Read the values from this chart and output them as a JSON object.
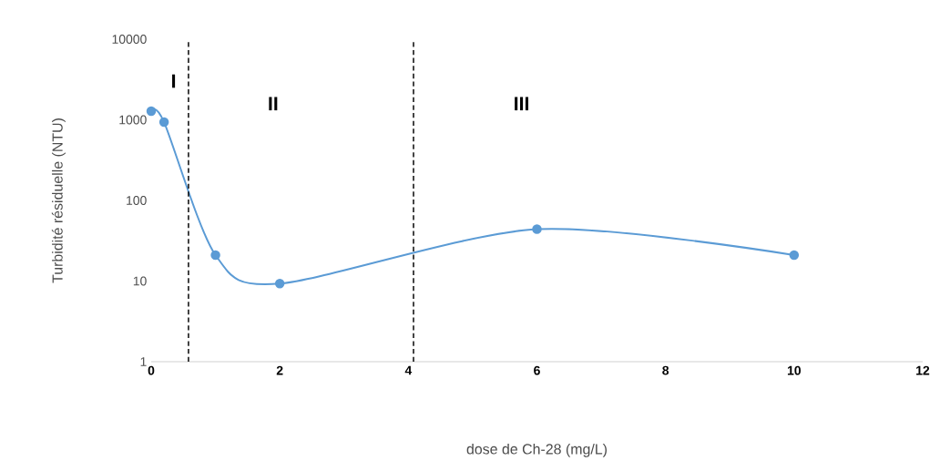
{
  "chart_data": {
    "type": "line",
    "xlabel": "dose de Ch-28 (mg/L)",
    "ylabel": "Turbidité résiduelle (NTU)",
    "x": [
      0,
      0.2,
      1,
      2,
      6,
      10
    ],
    "series": [
      {
        "color": "#5b9bd5",
        "values": [
          1280,
          935,
          21,
          9.3,
          44,
          21
        ]
      }
    ],
    "log": "y",
    "marker": "circle",
    "line_style": "solid",
    "grid": false,
    "xlim": [
      0,
      12
    ],
    "xticks": [
      0,
      2,
      4,
      6,
      8,
      10,
      12
    ],
    "ylim": [
      1,
      10000
    ],
    "yticks": [
      1,
      10,
      100,
      1000,
      10000
    ],
    "ref_lines": [
      {
        "axis": "x",
        "value": 0.58,
        "color": "#000000",
        "line_style": "dashed"
      },
      {
        "axis": "x",
        "value": 4.08,
        "color": "#000000",
        "line_style": "dashed"
      }
    ],
    "annotations": [
      "I",
      "II",
      "III"
    ]
  }
}
